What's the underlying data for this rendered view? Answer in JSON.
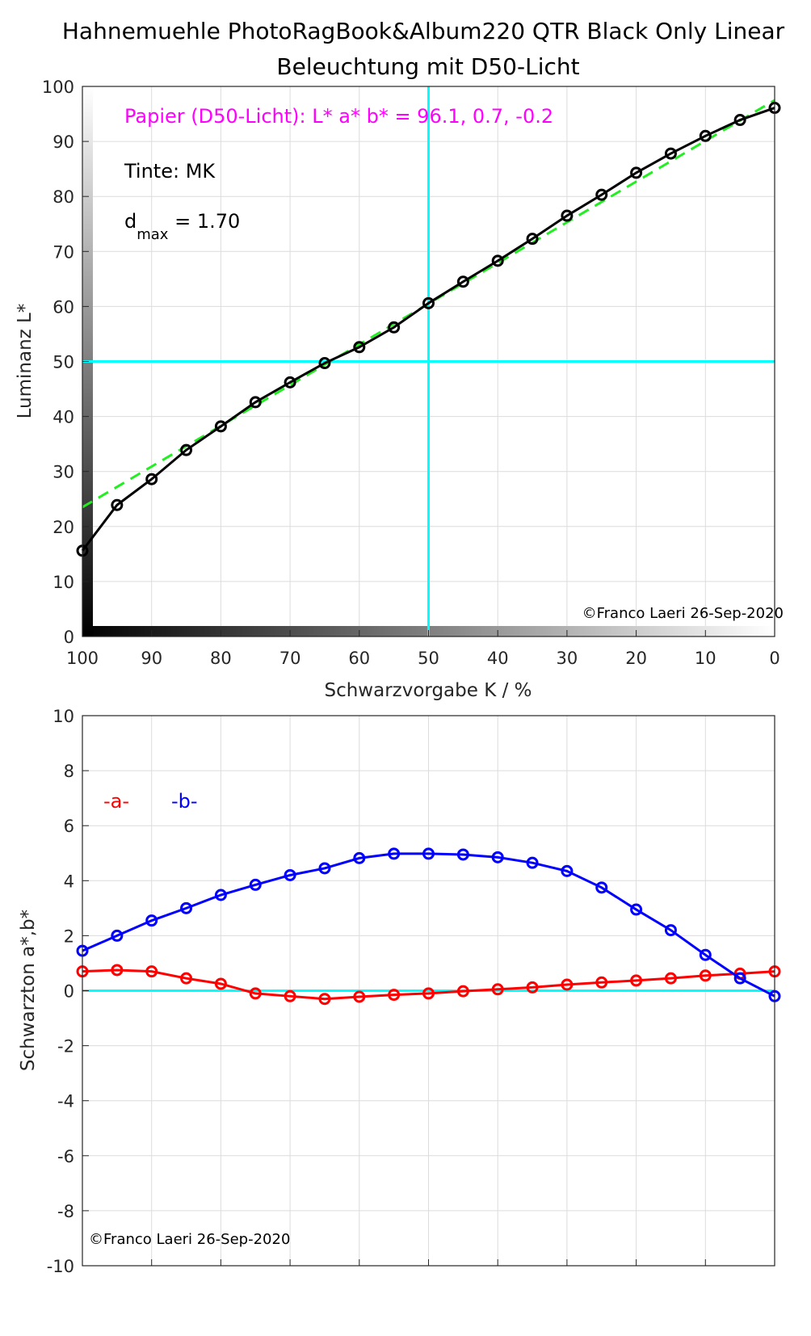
{
  "colors": {
    "background": "#ffffff",
    "grid": "#dcdcdc",
    "axis": "#262626",
    "reference_line": "#00ffff",
    "luminance_curve": "#000000",
    "linear_fit": "#22ee22",
    "series_a": "#ff0000",
    "series_b": "#0000ff",
    "paper_annotation": "#ff00ff"
  },
  "chart_data": [
    {
      "type": "line",
      "title": "Hahnemuehle PhotoRagBook&Album220 QTR Black Only Linear",
      "subtitle": "Beleuchtung mit D50-Licht",
      "xlabel": "Schwarzvorgabe  K / %",
      "ylabel": "Luminanz  L*",
      "xlim": [
        100,
        0
      ],
      "ylim": [
        0,
        100
      ],
      "x_reversed": true,
      "xticks": [
        100,
        90,
        80,
        70,
        60,
        50,
        40,
        30,
        20,
        10,
        0
      ],
      "yticks": [
        0,
        10,
        20,
        30,
        40,
        50,
        60,
        70,
        80,
        90,
        100
      ],
      "grid": true,
      "x": [
        100,
        95,
        90,
        85,
        80,
        75,
        70,
        65,
        60,
        55,
        50,
        45,
        40,
        35,
        30,
        25,
        20,
        15,
        10,
        5,
        0
      ],
      "series": [
        {
          "values": [
            15.6,
            23.9,
            28.6,
            33.9,
            38.2,
            42.6,
            46.2,
            49.7,
            52.6,
            56.2,
            60.6,
            64.5,
            68.3,
            72.3,
            76.5,
            80.3,
            84.3,
            87.8,
            91.0,
            93.9,
            96.1
          ],
          "marker": "circle"
        }
      ],
      "linear_fit": {
        "x": [
          100,
          0
        ],
        "y": [
          23.5,
          97.5
        ],
        "style": "dashed"
      },
      "reference_lines": {
        "x": 50,
        "y": 50
      },
      "gray_ramp": "black at K=100 to white at K=0 along both axes",
      "annotations": {
        "paper": "Papier (D50-Licht): L* a* b* = 96.1, 0.7, -0.2",
        "ink": "Tinte:  MK",
        "dmax_base": "d",
        "dmax_sub": "max",
        "dmax_value": " = 1.70",
        "copyright": "©Franco Laeri  26-Sep-2020"
      }
    },
    {
      "type": "line",
      "ylabel": "Schwarzton a*,b*",
      "xlim": [
        100,
        0
      ],
      "ylim": [
        -10,
        10
      ],
      "x_reversed": true,
      "yticks": [
        -10,
        -8,
        -6,
        -4,
        -2,
        0,
        2,
        4,
        6,
        8,
        10
      ],
      "grid": true,
      "legend_position": "upper-left",
      "x": [
        100,
        95,
        90,
        85,
        80,
        75,
        70,
        65,
        60,
        55,
        50,
        45,
        40,
        35,
        30,
        25,
        20,
        15,
        10,
        5,
        0
      ],
      "series": [
        {
          "name": "-a-",
          "color": "#ff0000",
          "values": [
            0.7,
            0.75,
            0.7,
            0.45,
            0.25,
            -0.1,
            -0.2,
            -0.3,
            -0.22,
            -0.15,
            -0.1,
            -0.02,
            0.05,
            0.12,
            0.22,
            0.3,
            0.37,
            0.45,
            0.55,
            0.62,
            0.7
          ]
        },
        {
          "name": "-b-",
          "color": "#0000ff",
          "values": [
            1.45,
            2.0,
            2.55,
            3.0,
            3.48,
            3.85,
            4.2,
            4.45,
            4.82,
            4.98,
            4.98,
            4.95,
            4.85,
            4.65,
            4.35,
            3.75,
            2.95,
            2.2,
            1.3,
            0.45,
            -0.2
          ]
        }
      ],
      "reference_lines": {
        "y": 0
      },
      "annotations": {
        "copyright": "©Franco Laeri  26-Sep-2020"
      }
    }
  ]
}
